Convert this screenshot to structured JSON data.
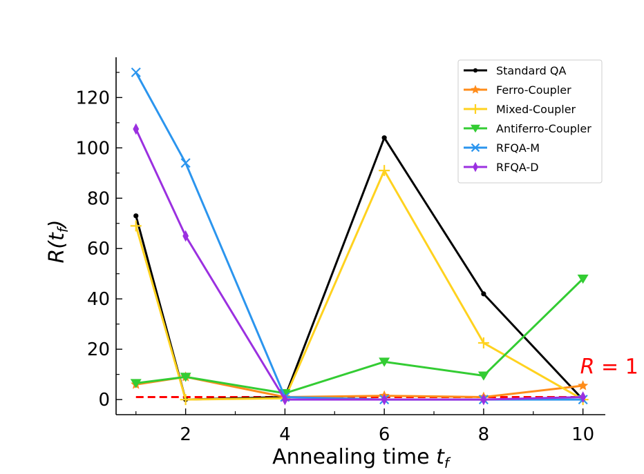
{
  "chart_data": {
    "type": "line",
    "title": "",
    "xlabel_prefix": "Annealing time ",
    "xlabel_var": "t",
    "xlabel_sub": "f",
    "ylabel_func": "R(",
    "ylabel_var": "t",
    "ylabel_sub": "f",
    "ylabel_close": ")",
    "xlim": [
      0.6,
      10.45
    ],
    "ylim": [
      -6,
      136
    ],
    "x": [
      1,
      2,
      4,
      6,
      8,
      10
    ],
    "xticks": [
      2,
      4,
      6,
      8,
      10
    ],
    "xminor": [
      1,
      3,
      5,
      7,
      9
    ],
    "yticks": [
      0,
      20,
      40,
      60,
      80,
      100,
      120
    ],
    "yminor": [
      10,
      30,
      50,
      70,
      90,
      110,
      130
    ],
    "legend_position": "upper right",
    "reference": {
      "value": 1,
      "label_var": "R",
      "label_rest": " = 1",
      "color": "#ff0000",
      "style": "dashed"
    },
    "series": [
      {
        "name": "Standard QA",
        "color": "#000000",
        "marker": "dot",
        "values": [
          73,
          0,
          1,
          104,
          42,
          0
        ]
      },
      {
        "name": "Ferro-Coupler",
        "color": "#ff8c1a",
        "marker": "star",
        "values": [
          6,
          9,
          1,
          1.5,
          1,
          5.5
        ]
      },
      {
        "name": "Mixed-Coupler",
        "color": "#ffd21f",
        "marker": "plus",
        "values": [
          69,
          0,
          0.5,
          91,
          22.5,
          0
        ]
      },
      {
        "name": "Antiferro-Coupler",
        "color": "#33cc33",
        "marker": "triangle-down",
        "values": [
          6.5,
          9,
          2.5,
          15,
          9.5,
          48
        ]
      },
      {
        "name": "RFQA-M",
        "color": "#2b95ee",
        "marker": "x",
        "values": [
          130,
          94,
          1,
          0,
          0,
          0
        ]
      },
      {
        "name": "RFQA-D",
        "color": "#9b30e0",
        "marker": "thin-diamond",
        "values": [
          107.5,
          65,
          0,
          0,
          0,
          1
        ]
      }
    ]
  }
}
